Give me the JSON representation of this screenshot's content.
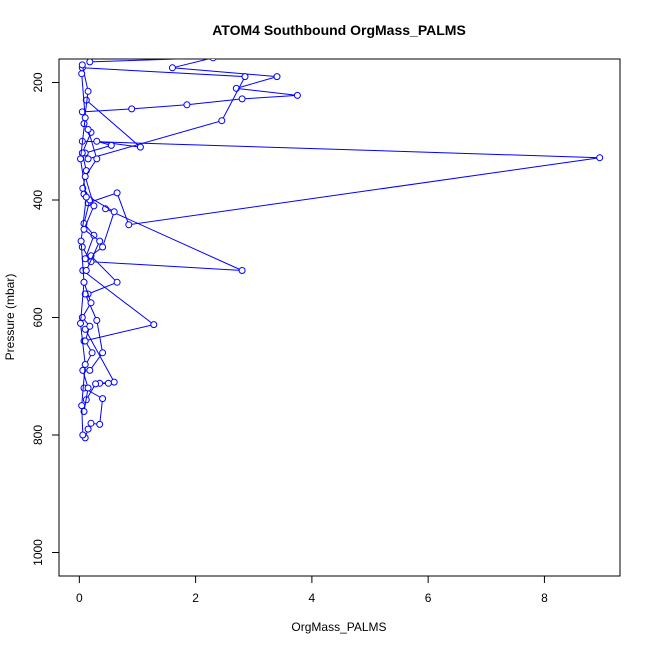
{
  "chart_data": {
    "type": "line",
    "title": "ATOM4 Southbound OrgMass_PALMS",
    "xlabel": "OrgMass_PALMS",
    "ylabel": "Pressure (mbar)",
    "xlim": [
      -0.35,
      9.3
    ],
    "ylim": [
      1040,
      160
    ],
    "y_reversed": true,
    "x_ticks": [
      0,
      2,
      4,
      6,
      8
    ],
    "y_ticks": [
      200,
      400,
      600,
      800,
      1000
    ],
    "grid": false,
    "marker": "open-circle",
    "series_color": "#0000ff",
    "series": [
      {
        "x": [
          0.18,
          2.3,
          1.6,
          3.4,
          2.7,
          3.75,
          2.8,
          1.85,
          0.9,
          0.05
        ],
        "y": [
          165,
          158,
          175,
          190,
          210,
          222,
          228,
          238,
          245,
          250
        ]
      },
      {
        "x": [
          0.05,
          2.85,
          2.45,
          0.15
        ],
        "y": [
          175,
          190,
          265,
          330
        ]
      },
      {
        "x": [
          0.05,
          8.95,
          0.85,
          0.65,
          0.15
        ],
        "y": [
          300,
          328,
          442,
          388,
          405
        ]
      },
      {
        "x": [
          0.45,
          2.8,
          0.2,
          0.05
        ],
        "y": [
          415,
          520,
          505,
          480
        ]
      },
      {
        "x": [
          0.06,
          1.28,
          0.08
        ],
        "y": [
          520,
          612,
          640
        ]
      },
      {
        "x": [
          0.12,
          1.05,
          0.3,
          0.55,
          0.1
        ],
        "y": [
          230,
          310,
          300,
          307,
          320
        ]
      },
      {
        "x": [
          0.08,
          0.6,
          0.4,
          0.2,
          0.65,
          0.15
        ],
        "y": [
          390,
          420,
          480,
          495,
          540,
          560
        ]
      },
      {
        "x": [
          0.1,
          0.3,
          0.4,
          0.18
        ],
        "y": [
          560,
          605,
          660,
          690
        ]
      },
      {
        "x": [
          0.1,
          0.6,
          0.35,
          0.5,
          0.28,
          0.12
        ],
        "y": [
          620,
          710,
          712,
          712,
          713,
          740
        ]
      },
      {
        "x": [
          0.08,
          0.4,
          0.35,
          0.2,
          0.15,
          0.1
        ],
        "y": [
          720,
          738,
          782,
          780,
          790,
          805
        ]
      },
      {
        "x": [
          0.05,
          0.15,
          0.08,
          0.2,
          0.05,
          0.12,
          0.06,
          0.18,
          0.08,
          0.25,
          0.1
        ],
        "y": [
          170,
          215,
          270,
          285,
          320,
          350,
          380,
          400,
          440,
          460,
          500
        ]
      },
      {
        "x": [
          0.08,
          0.2,
          0.05,
          0.18,
          0.1,
          0.22,
          0.06,
          0.15,
          0.08
        ],
        "y": [
          540,
          575,
          600,
          615,
          640,
          660,
          690,
          720,
          760
        ]
      },
      {
        "x": [
          0.04,
          0.1,
          0.02,
          0.12,
          0.03,
          0.08,
          0.02,
          0.1,
          0.04,
          0.06
        ],
        "y": [
          185,
          260,
          330,
          395,
          470,
          540,
          610,
          680,
          750,
          800
        ]
      },
      {
        "x": [
          0.15,
          0.3,
          0.1,
          0.25,
          0.08,
          0.35,
          0.12
        ],
        "y": [
          280,
          330,
          360,
          410,
          450,
          470,
          520
        ]
      }
    ]
  }
}
